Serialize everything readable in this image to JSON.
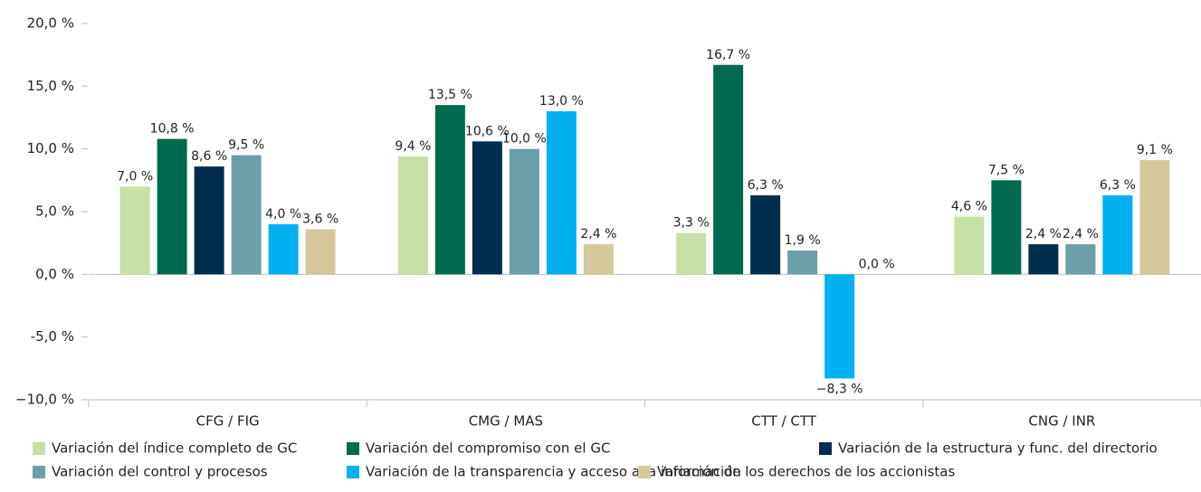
{
  "chart_data": {
    "type": "bar",
    "categories": [
      "CFG / FIG",
      "CMG / MAS",
      "CTT / CTT",
      "CNG / INR"
    ],
    "series": [
      {
        "name": "Variación del índice completo de GC",
        "color": "#c6e0a7",
        "values": [
          7.0,
          9.4,
          3.3,
          4.6
        ],
        "value_labels": [
          "7,0 %",
          "9,4 %",
          "3,3 %",
          "4,6 %"
        ]
      },
      {
        "name": "Variación del compromiso con el GC",
        "color": "#006a4e",
        "values": [
          10.8,
          13.5,
          16.7,
          7.5
        ],
        "value_labels": [
          "10,8 %",
          "13,5 %",
          "16,7 %",
          "7,5 %"
        ]
      },
      {
        "name": "Variación de la estructura y func. del directorio",
        "color": "#002e4f",
        "values": [
          8.6,
          10.6,
          6.3,
          2.4
        ],
        "value_labels": [
          "8,6 %",
          "10,6 %",
          "6,3 %",
          "2,4 %"
        ]
      },
      {
        "name": "Variación del control y procesos",
        "color": "#6b9fa7",
        "values": [
          9.5,
          10.0,
          1.9,
          2.4
        ],
        "value_labels": [
          "9,5 %",
          "10,0 %",
          "1,9 %",
          "2,4 %"
        ]
      },
      {
        "name": "Variación de la transparencia y acceso a la información",
        "color": "#00b0f0",
        "values": [
          4.0,
          13.0,
          -8.3,
          6.3
        ],
        "value_labels": [
          "4,0 %",
          "13,0 %",
          "−8,3 %",
          "6,3 %"
        ]
      },
      {
        "name": "Variación de los derechos de los accionistas",
        "color": "#d5c99b",
        "values": [
          3.6,
          2.4,
          0.0,
          9.1
        ],
        "value_labels": [
          "3,6 %",
          "2,4 %",
          "0,0 %",
          "9,1 %"
        ]
      }
    ],
    "ylim": [
      -10,
      20
    ],
    "yticks": [
      {
        "value": -10,
        "label": "−10,0 %"
      },
      {
        "value": -5,
        "label": "-5,0 %"
      },
      {
        "value": 0,
        "label": "0,0 %"
      },
      {
        "value": 5,
        "label": "5,0 %"
      },
      {
        "value": 10,
        "label": "10,0 %"
      },
      {
        "value": 15,
        "label": "15,0 %"
      },
      {
        "value": 20,
        "label": "20,0 %"
      }
    ],
    "legend": "bottom"
  }
}
